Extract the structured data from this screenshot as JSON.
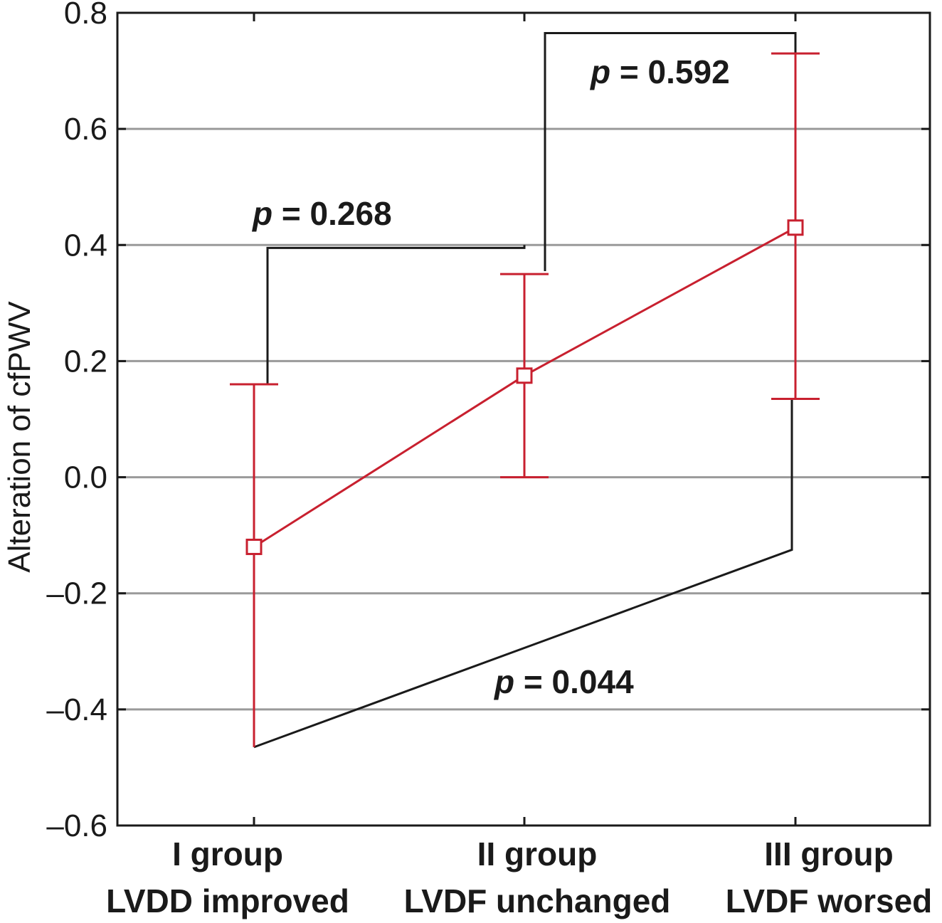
{
  "chart_data": {
    "type": "line",
    "title": "",
    "xlabel": "",
    "ylabel": "Alteration of cfPWV",
    "ylim": [
      -0.6,
      0.8
    ],
    "yticks": [
      -0.6,
      -0.4,
      -0.2,
      0.0,
      0.2,
      0.4,
      0.6,
      0.8
    ],
    "ytick_labels": [
      "–0.6",
      "–0.4",
      "–0.2",
      "0.0",
      "0.2",
      "0.4",
      "0.6",
      "0.8"
    ],
    "grid": true,
    "categories": [
      {
        "line1": "I group",
        "line2": "LVDD improved"
      },
      {
        "line1": "II group",
        "line2": "LVDF unchanged"
      },
      {
        "line1": "III group",
        "line2": "LVDF worsed"
      }
    ],
    "series": [
      {
        "name": "Alteration of cfPWV",
        "color": "#c8202f",
        "marker": "square",
        "values": [
          -0.12,
          0.175,
          0.43
        ],
        "error_lower": [
          -0.465,
          0.0,
          0.135
        ],
        "error_upper": [
          0.16,
          0.35,
          0.73
        ]
      }
    ],
    "comparisons": [
      {
        "groups": [
          0,
          1
        ],
        "p_symbol": "p",
        "p_value": "= 0.268",
        "bracket_y": 0.395,
        "start_y": [
          0.16,
          0.4
        ]
      },
      {
        "groups": [
          1,
          2
        ],
        "p_symbol": "p",
        "p_value": "= 0.592",
        "bracket_y": 0.765,
        "start_y": [
          0.355,
          0.73
        ]
      },
      {
        "groups": [
          0,
          2
        ],
        "p_symbol": "p",
        "p_value": "= 0.044",
        "start_y": [
          -0.465,
          -0.125
        ],
        "top_y": [
          -0.465,
          0.135
        ]
      }
    ]
  }
}
